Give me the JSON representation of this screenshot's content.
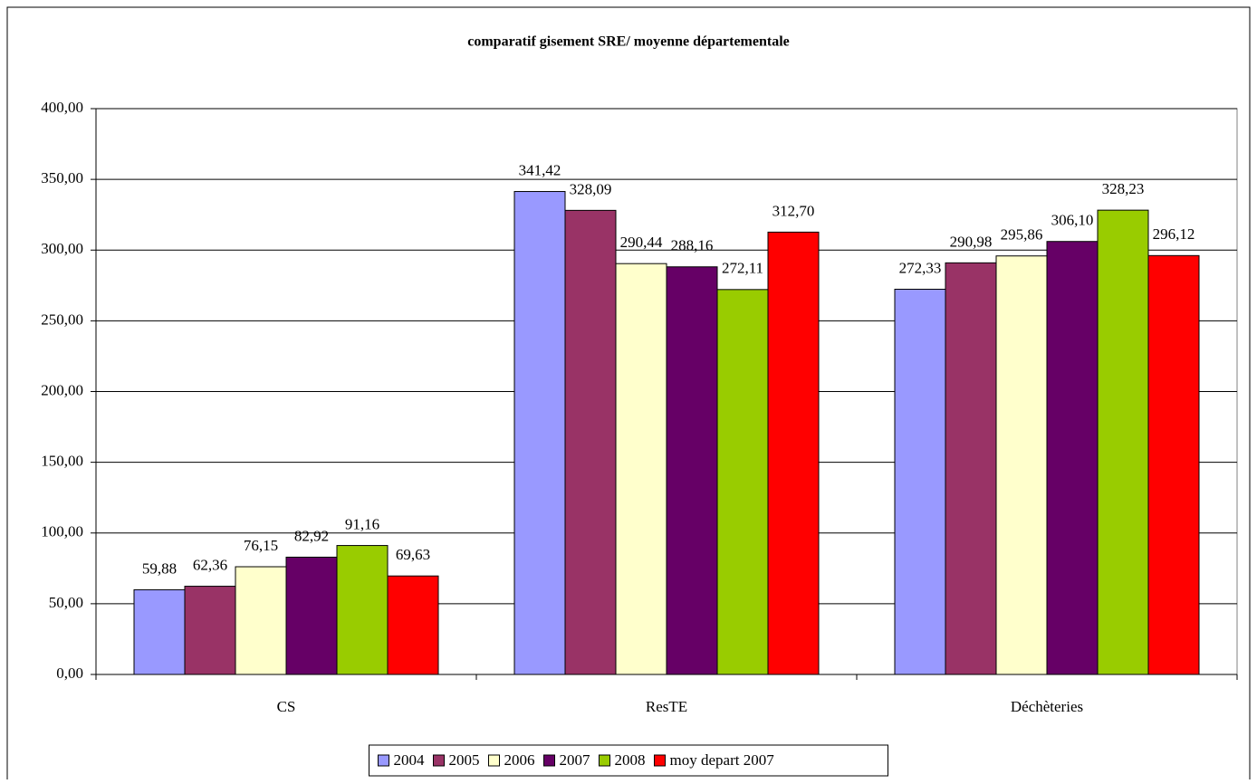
{
  "chart_data": {
    "type": "bar",
    "title": "comparatif gisement SRE/ moyenne départementale",
    "categories": [
      "CS",
      "ResTE",
      "Déchèteries"
    ],
    "series": [
      {
        "name": "2004",
        "color": "#9999ff",
        "values": [
          59.88,
          341.42,
          272.33
        ],
        "value_labels": [
          "59,88",
          "341,42",
          "272,33"
        ]
      },
      {
        "name": "2005",
        "color": "#993366",
        "values": [
          62.36,
          328.09,
          290.98
        ],
        "value_labels": [
          "62,36",
          "328,09",
          "290,98"
        ]
      },
      {
        "name": "2006",
        "color": "#ffffcc",
        "values": [
          76.15,
          290.44,
          295.86
        ],
        "value_labels": [
          "76,15",
          "290,44",
          "295,86"
        ]
      },
      {
        "name": "2007",
        "color": "#660066",
        "values": [
          82.92,
          288.16,
          306.1
        ],
        "value_labels": [
          "82,92",
          "288,16",
          "306,10"
        ]
      },
      {
        "name": "2008",
        "color": "#99cc00",
        "values": [
          91.16,
          272.11,
          328.23
        ],
        "value_labels": [
          "91,16",
          "272,11",
          "328,23"
        ]
      },
      {
        "name": "moy depart 2007",
        "color": "#ff0000",
        "values": [
          69.63,
          312.7,
          296.12
        ],
        "value_labels": [
          "69,63",
          "312,70",
          "296,12"
        ]
      }
    ],
    "ylim": [
      0,
      400
    ],
    "yticks": [
      {
        "value": 0,
        "label": "0,00"
      },
      {
        "value": 50,
        "label": "50,00"
      },
      {
        "value": 100,
        "label": "100,00"
      },
      {
        "value": 150,
        "label": "150,00"
      },
      {
        "value": 200,
        "label": "200,00"
      },
      {
        "value": 250,
        "label": "250,00"
      },
      {
        "value": 300,
        "label": "300,00"
      },
      {
        "value": 350,
        "label": "350,00"
      },
      {
        "value": 400,
        "label": "400,00"
      }
    ],
    "grid": true,
    "legend": "bottom"
  }
}
